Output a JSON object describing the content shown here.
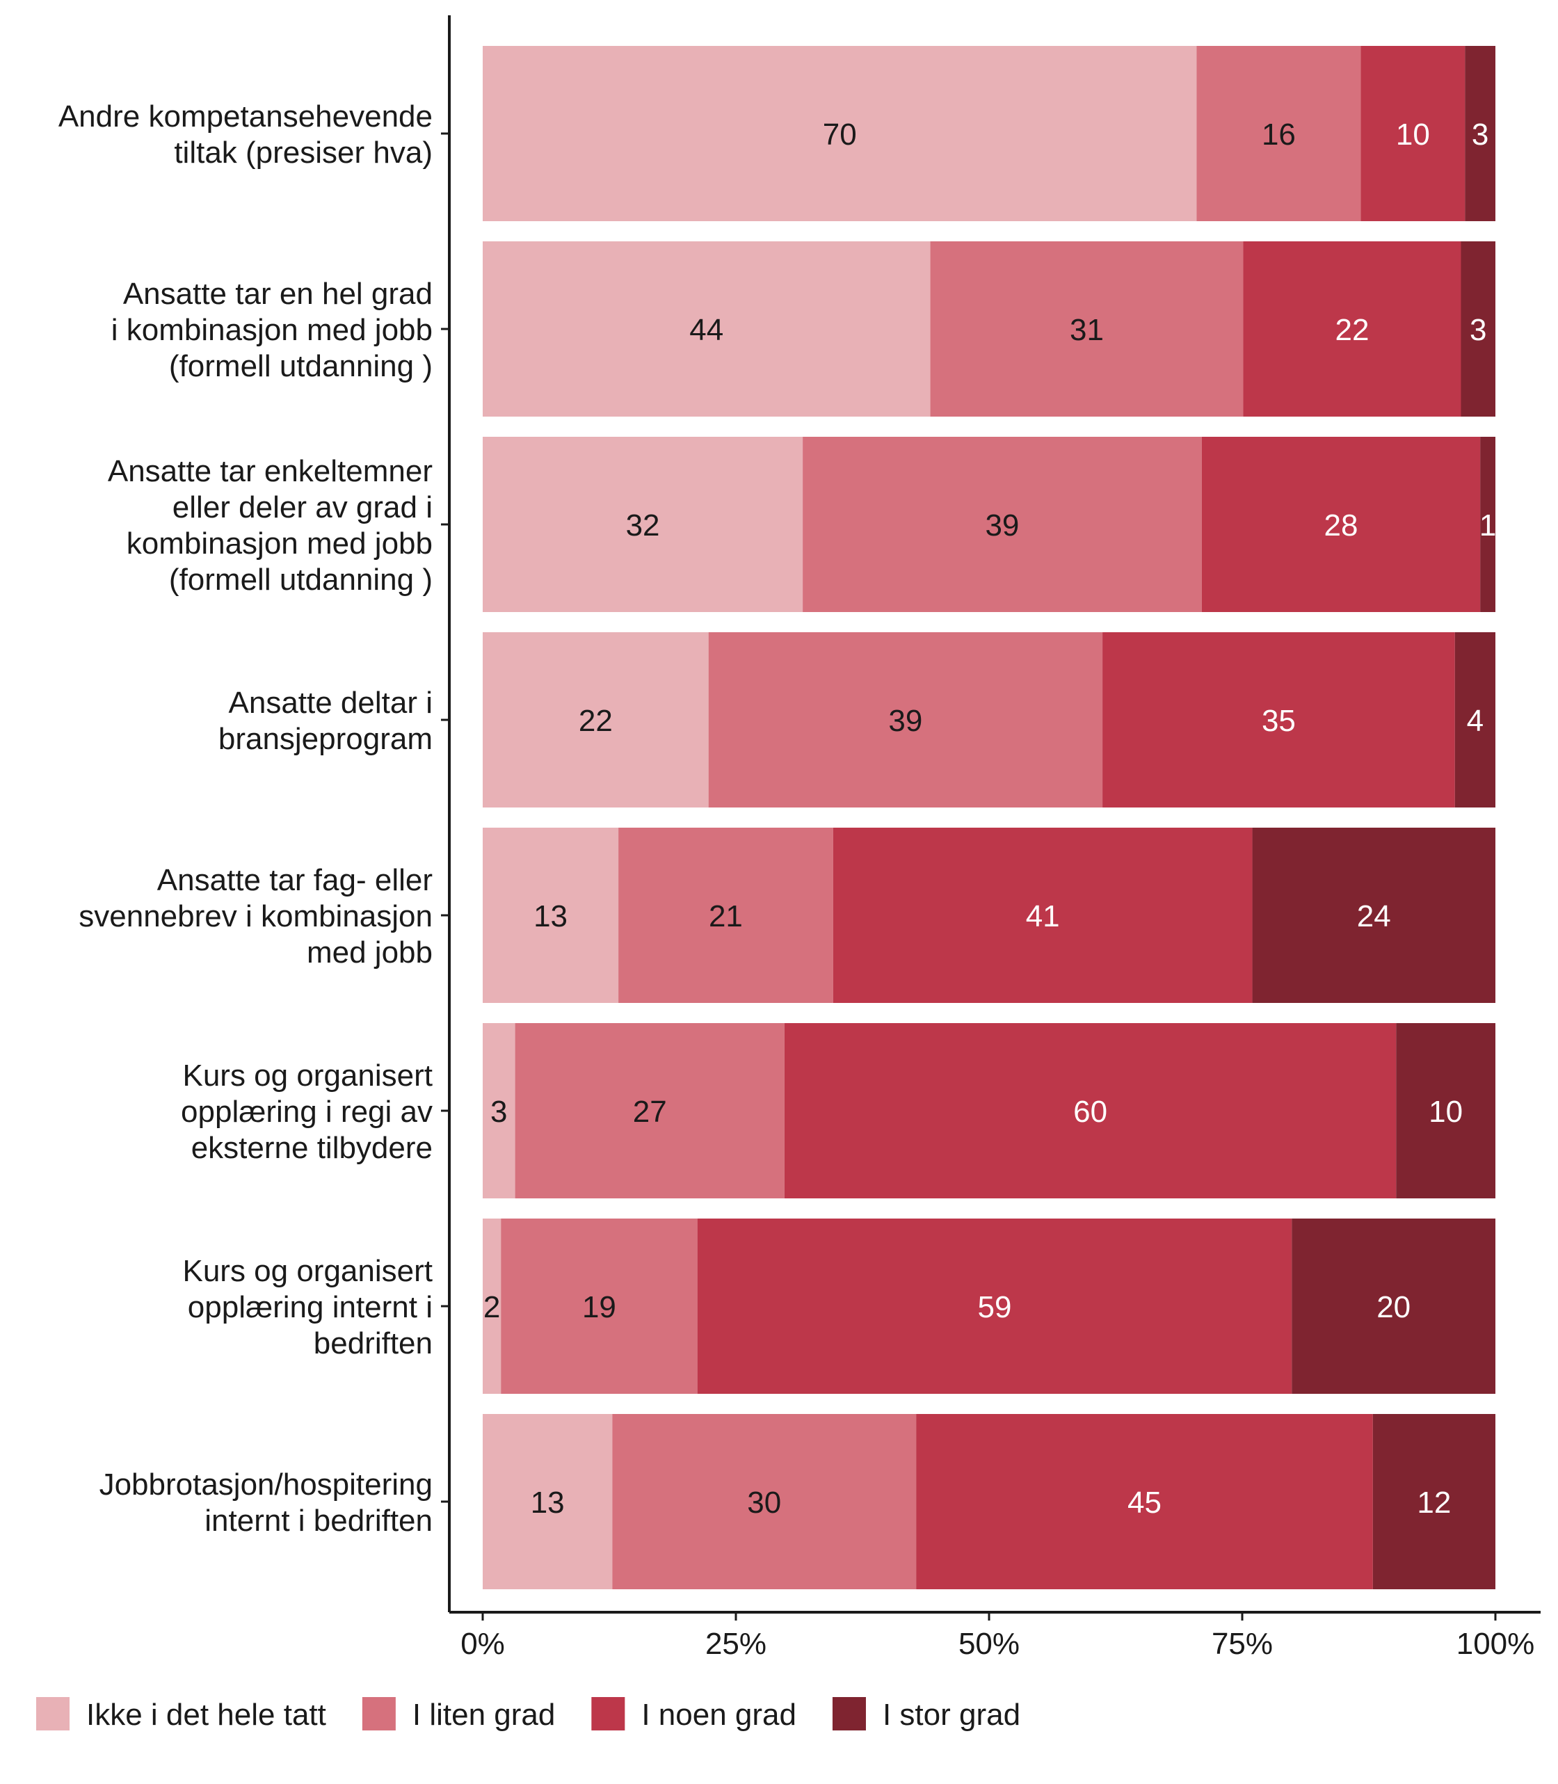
{
  "chart_data": {
    "type": "bar",
    "orientation": "horizontal",
    "stacked": "percent",
    "title": "",
    "xlabel": "",
    "ylabel": "",
    "xlim": [
      0,
      100
    ],
    "x_ticks": [
      "0%",
      "25%",
      "50%",
      "75%",
      "100%"
    ],
    "grid": false,
    "legend_position": "bottom",
    "categories": [
      [
        "Andre kompetansehevende",
        "tiltak (presiser hva)"
      ],
      [
        "Ansatte tar en hel grad",
        "i kombinasjon med jobb",
        "(formell utdanning )"
      ],
      [
        "Ansatte tar enkeltemner",
        "eller deler av grad i",
        "kombinasjon med jobb",
        "(formell utdanning )"
      ],
      [
        "Ansatte deltar i",
        "bransjeprogram"
      ],
      [
        "Ansatte tar fag- eller",
        "svennebrev i kombinasjon",
        "med jobb"
      ],
      [
        "Kurs og organisert",
        "opplæring i regi av",
        "eksterne tilbydere"
      ],
      [
        "Kurs og organisert",
        "opplæring internt i",
        "bedriften"
      ],
      [
        "Jobbrotasjon/hospitering",
        "internt i bedriften"
      ]
    ],
    "series": [
      {
        "name": "Ikke i det hele tatt",
        "color": "#e8b1b6",
        "label_color": "#1a1a1a",
        "values": [
          70,
          44,
          32,
          22,
          13,
          3,
          2,
          13
        ],
        "shares": [
          70.5,
          44.2,
          31.6,
          22.3,
          13.4,
          3.2,
          1.8,
          12.8
        ]
      },
      {
        "name": "I liten grad",
        "color": "#d6717d",
        "label_color": "#1a1a1a",
        "values": [
          16,
          31,
          39,
          39,
          21,
          27,
          19,
          30
        ],
        "shares": [
          16.2,
          30.9,
          39.4,
          38.9,
          21.2,
          26.6,
          19.4,
          30.0
        ]
      },
      {
        "name": "I noen grad",
        "color": "#bd374a",
        "label_color": "#ffffff",
        "values": [
          10,
          22,
          28,
          35,
          41,
          60,
          59,
          45
        ],
        "shares": [
          10.3,
          21.5,
          27.5,
          34.8,
          41.4,
          60.4,
          58.7,
          45.1
        ]
      },
      {
        "name": "I stor grad",
        "color": "#7f2430",
        "label_color": "#ffffff",
        "values": [
          3,
          3,
          1,
          4,
          24,
          10,
          20,
          12
        ],
        "shares": [
          3.0,
          3.4,
          1.5,
          4.0,
          24.0,
          9.8,
          20.1,
          12.1
        ]
      }
    ]
  }
}
